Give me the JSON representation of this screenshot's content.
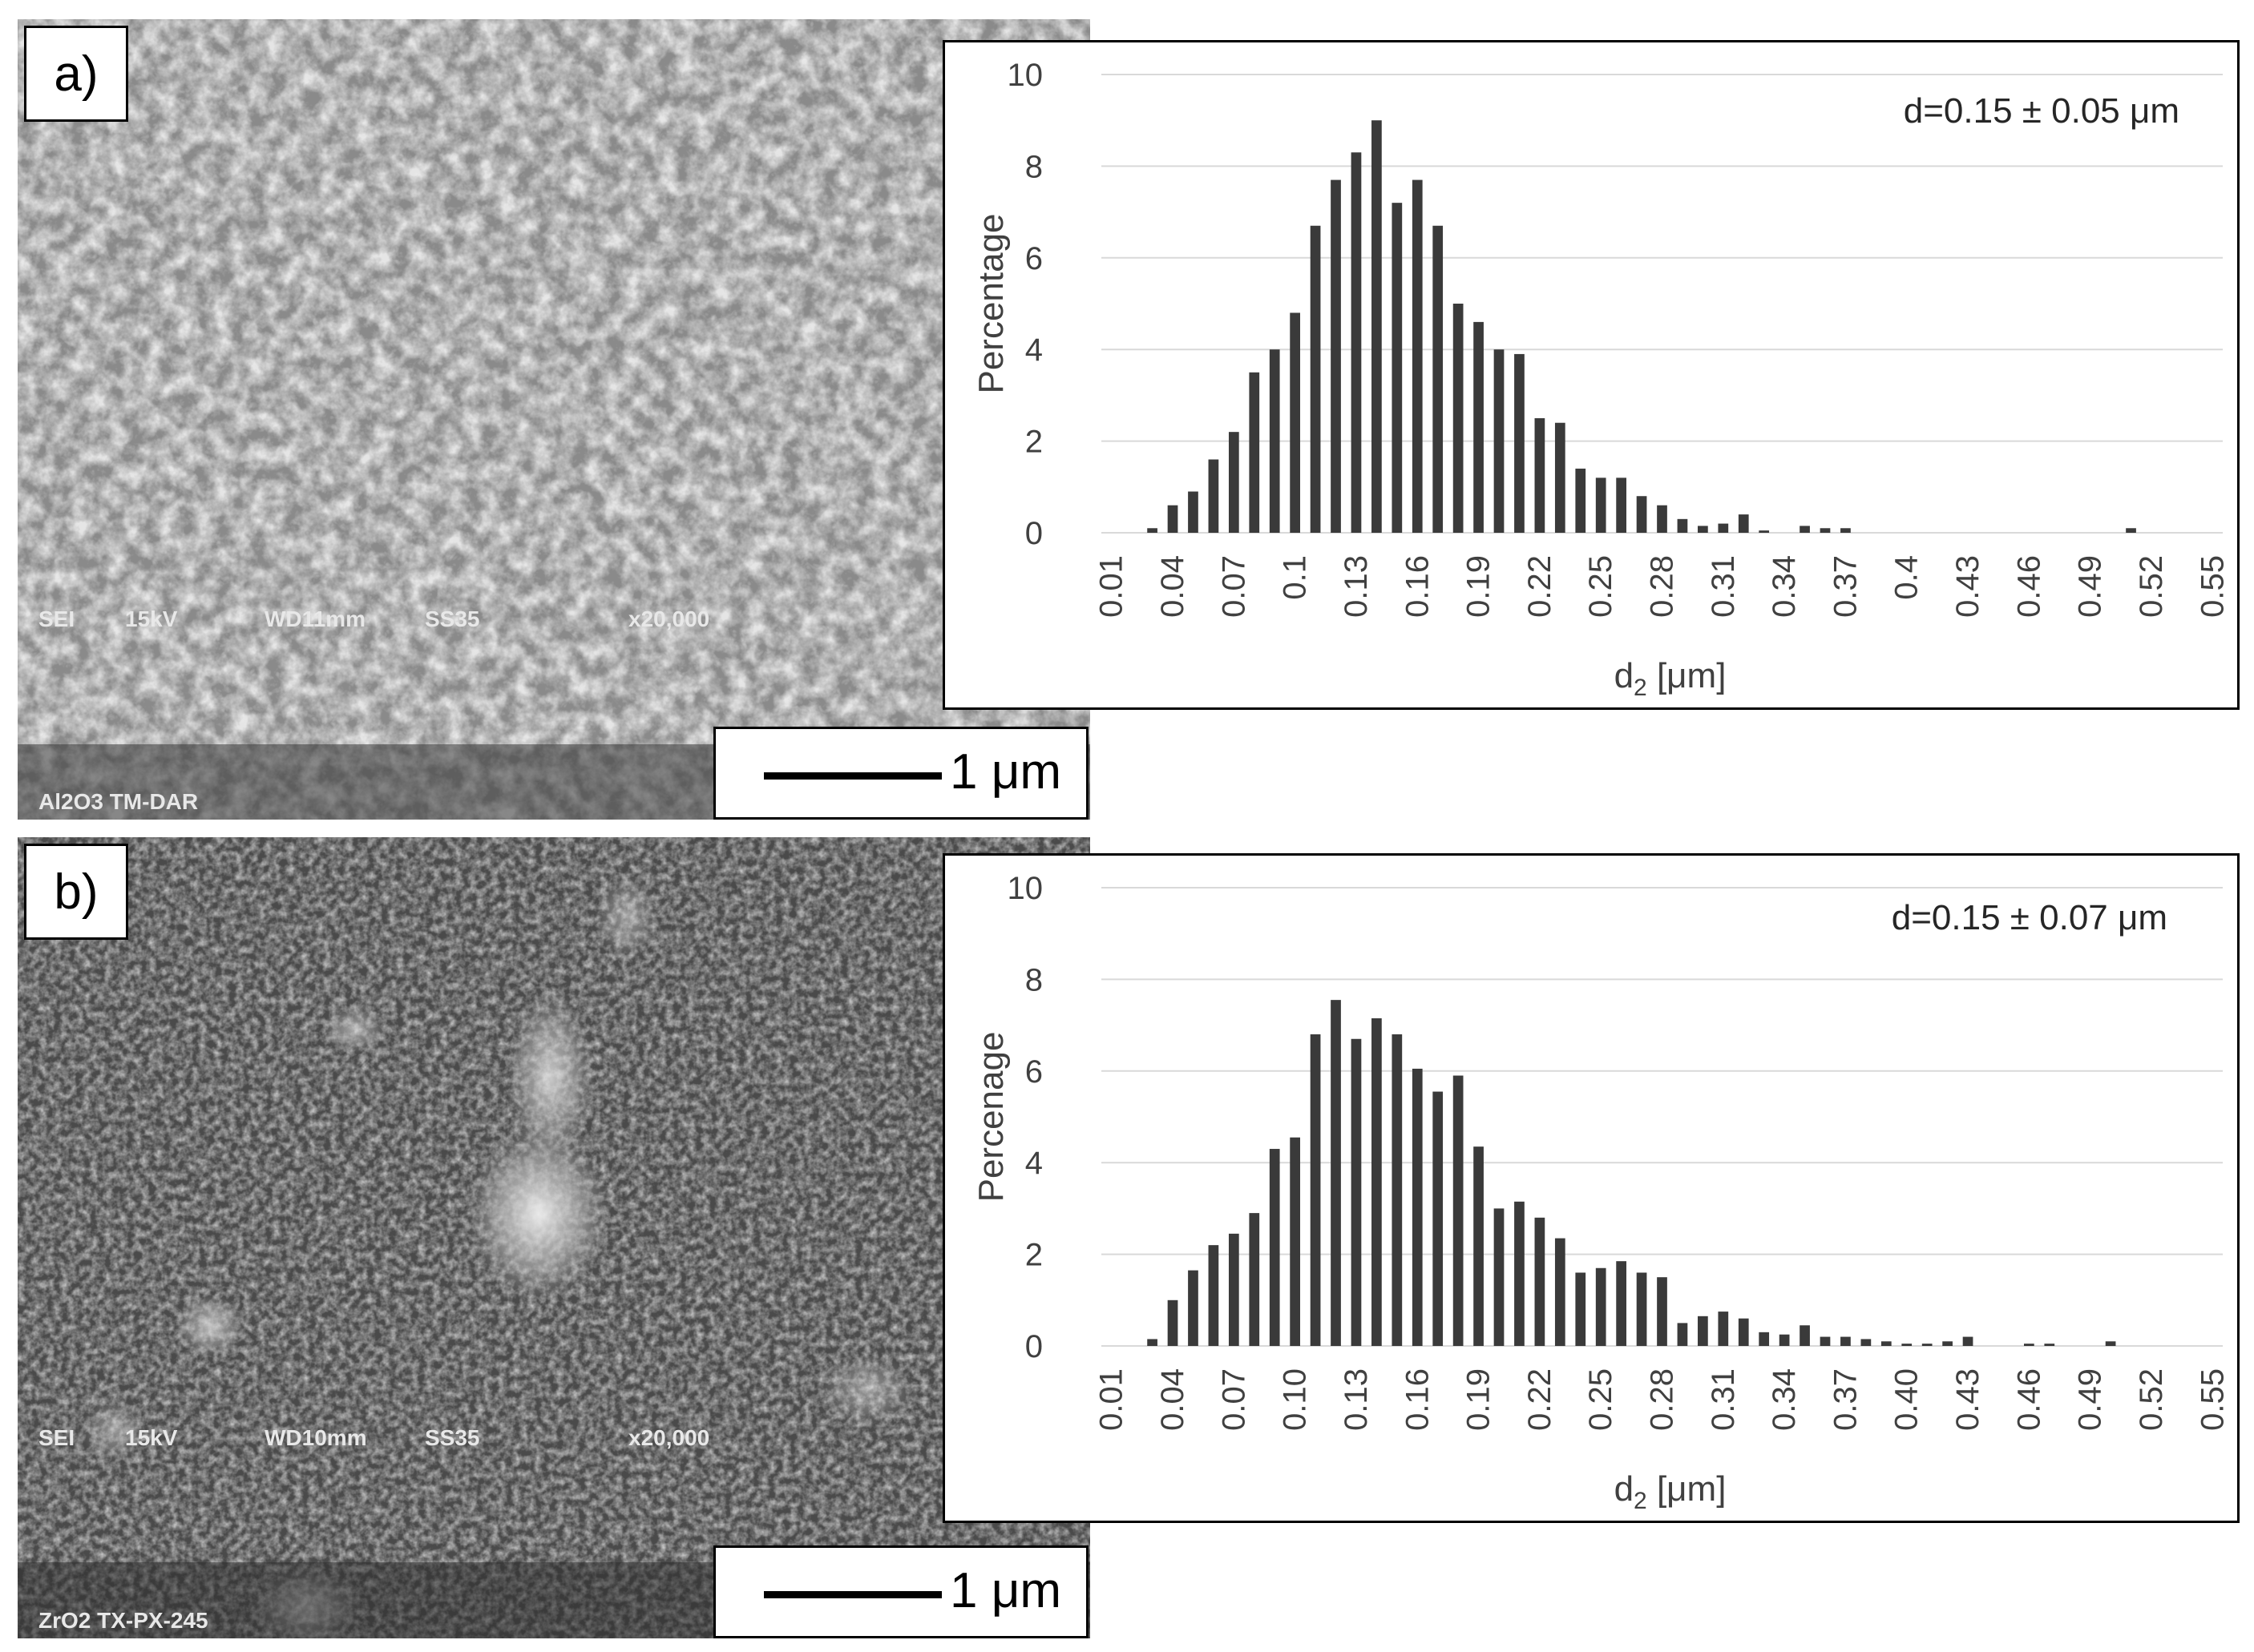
{
  "panels": [
    {
      "label": "a)",
      "sem": {
        "info_line1": [
          "SEI",
          "15kV",
          "WD11mm",
          "SS35",
          "x20,000"
        ],
        "info_line2": "Al2O3 TM-DAR",
        "scale_label": "1 μm"
      }
    },
    {
      "label": "b)",
      "sem": {
        "info_line1": [
          "SEI",
          "15kV",
          "WD10mm",
          "SS35",
          "x20,000"
        ],
        "info_line2": "ZrO2 TX-PX-245",
        "scale_label": "1 μm"
      }
    }
  ],
  "chart_data": [
    {
      "type": "bar",
      "ylabel": "Percentage",
      "xlabel_main": "d",
      "xlabel_sub": "2",
      "xlabel_unit": " [μm]",
      "annotation": "d=0.15 ± 0.05 μm",
      "ylim": [
        0,
        10
      ],
      "yticks": [
        0,
        2,
        4,
        6,
        8,
        10
      ],
      "grid": true,
      "x_tick_labels": [
        "0.01",
        "0.04",
        "0.07",
        "0.1",
        "0.13",
        "0.16",
        "0.19",
        "0.22",
        "0.25",
        "0.28",
        "0.31",
        "0.34",
        "0.37",
        "0.4",
        "0.43",
        "0.46",
        "0.49",
        "0.52",
        "0.55"
      ],
      "categories": [
        "0.01",
        "0.02",
        "0.03",
        "0.04",
        "0.05",
        "0.06",
        "0.07",
        "0.08",
        "0.09",
        "0.1",
        "0.11",
        "0.12",
        "0.13",
        "0.14",
        "0.15",
        "0.16",
        "0.17",
        "0.18",
        "0.19",
        "0.2",
        "0.21",
        "0.22",
        "0.23",
        "0.24",
        "0.25",
        "0.26",
        "0.27",
        "0.28",
        "0.29",
        "0.3",
        "0.31",
        "0.32",
        "0.33",
        "0.34",
        "0.35",
        "0.36",
        "0.37",
        "0.38",
        "0.39",
        "0.4",
        "0.41",
        "0.42",
        "0.43",
        "0.44",
        "0.45",
        "0.46",
        "0.47",
        "0.48",
        "0.49",
        "0.5",
        "0.51",
        "0.52",
        "0.53",
        "0.54",
        "0.55"
      ],
      "values": [
        0,
        0,
        0.1,
        0.6,
        0.9,
        1.6,
        2.2,
        3.5,
        4.0,
        4.8,
        6.7,
        7.7,
        8.3,
        9.0,
        7.2,
        7.7,
        6.7,
        5.0,
        4.6,
        4.0,
        3.9,
        2.5,
        2.4,
        1.4,
        1.2,
        1.2,
        0.8,
        0.6,
        0.3,
        0.15,
        0.2,
        0.4,
        0.05,
        0,
        0.15,
        0.1,
        0.1,
        0,
        0,
        0,
        0,
        0,
        0,
        0,
        0,
        0,
        0,
        0,
        0,
        0,
        0.1,
        0,
        0,
        0,
        0
      ]
    },
    {
      "type": "bar",
      "ylabel": "Percenage",
      "xlabel_main": "d",
      "xlabel_sub": "2",
      "xlabel_unit": " [μm]",
      "annotation": "d=0.15 ± 0.07 μm",
      "ylim": [
        0,
        10
      ],
      "yticks": [
        0,
        2,
        4,
        6,
        8,
        10
      ],
      "grid": true,
      "x_tick_labels": [
        "0.01",
        "0.04",
        "0.07",
        "0.10",
        "0.13",
        "0.16",
        "0.19",
        "0.22",
        "0.25",
        "0.28",
        "0.31",
        "0.34",
        "0.37",
        "0.40",
        "0.43",
        "0.46",
        "0.49",
        "0.52",
        "0.55"
      ],
      "categories": [
        "0.01",
        "0.02",
        "0.03",
        "0.04",
        "0.05",
        "0.06",
        "0.07",
        "0.08",
        "0.09",
        "0.10",
        "0.11",
        "0.12",
        "0.13",
        "0.14",
        "0.15",
        "0.16",
        "0.17",
        "0.18",
        "0.19",
        "0.20",
        "0.21",
        "0.22",
        "0.23",
        "0.24",
        "0.25",
        "0.26",
        "0.27",
        "0.28",
        "0.29",
        "0.30",
        "0.31",
        "0.32",
        "0.33",
        "0.34",
        "0.35",
        "0.36",
        "0.37",
        "0.38",
        "0.39",
        "0.40",
        "0.41",
        "0.42",
        "0.43",
        "0.44",
        "0.45",
        "0.46",
        "0.47",
        "0.48",
        "0.49",
        "0.50",
        "0.51",
        "0.52",
        "0.53",
        "0.54",
        "0.55"
      ],
      "values": [
        0,
        0,
        0.15,
        1.0,
        1.65,
        2.2,
        2.45,
        2.9,
        4.3,
        4.55,
        6.8,
        7.55,
        6.7,
        7.15,
        6.8,
        6.05,
        5.55,
        5.9,
        4.35,
        3.0,
        3.15,
        2.8,
        2.35,
        1.6,
        1.7,
        1.85,
        1.6,
        1.5,
        0.5,
        0.65,
        0.75,
        0.6,
        0.3,
        0.25,
        0.45,
        0.2,
        0.2,
        0.15,
        0.1,
        0.05,
        0.05,
        0.1,
        0.2,
        0,
        0,
        0.05,
        0.05,
        0,
        0,
        0.1,
        0,
        0,
        0,
        0,
        0
      ]
    }
  ]
}
